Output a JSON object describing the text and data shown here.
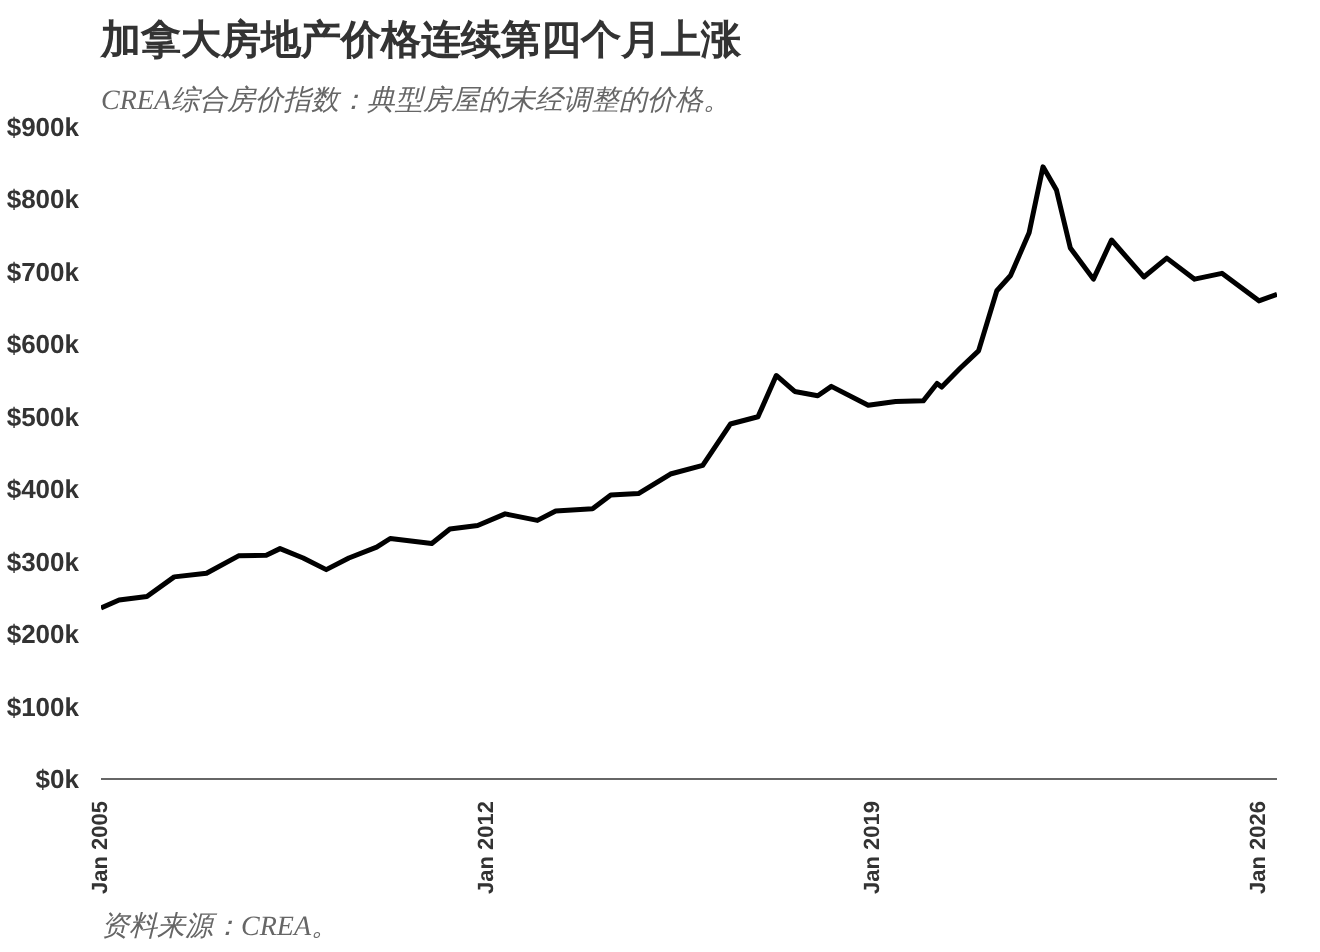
{
  "chart_data": {
    "type": "line",
    "title": "加拿大房地产价格连续第四个月上涨",
    "subtitle": "CREA综合房价指数：典型房屋的未经调整的价格。",
    "annotations": [
      "资料来源：CREA。"
    ],
    "x": [
      "2005-01",
      "2005-05",
      "2005-11",
      "2006-05",
      "2006-12",
      "2007-07",
      "2008-01",
      "2008-04",
      "2008-09",
      "2009-02",
      "2009-07",
      "2010-01",
      "2010-04",
      "2011-01",
      "2011-05",
      "2011-11",
      "2012-05",
      "2012-12",
      "2013-04",
      "2013-12",
      "2014-04",
      "2014-10",
      "2015-05",
      "2015-12",
      "2016-06",
      "2016-12",
      "2017-04",
      "2017-08",
      "2018-01",
      "2018-04",
      "2018-12",
      "2019-06",
      "2019-12",
      "2020-03",
      "2020-04",
      "2020-08",
      "2020-12",
      "2021-04",
      "2021-07",
      "2021-11",
      "2022-02",
      "2022-05",
      "2022-08",
      "2023-01",
      "2023-05",
      "2023-12",
      "2024-05",
      "2024-11",
      "2025-05",
      "2026-01",
      "2026-05"
    ],
    "series": [
      {
        "color": "#000000",
        "values": [
          236,
          247,
          252,
          279,
          284,
          308,
          309,
          318,
          305,
          289,
          305,
          320,
          332,
          325,
          345,
          350,
          366,
          357,
          370,
          373,
          392,
          394,
          421,
          433,
          490,
          500,
          557,
          535,
          529,
          542,
          516,
          521,
          522,
          546,
          541,
          567,
          591,
          674,
          695,
          754,
          845,
          813,
          733,
          690,
          744,
          693,
          719,
          690,
          698,
          660,
          669
        ]
      }
    ],
    "xlim": [
      "2005-01",
      "2026-05"
    ],
    "xticks": [
      {
        "value": "2005-01",
        "label": "Jan 2005"
      },
      {
        "value": "2012-01",
        "label": "Jan 2012"
      },
      {
        "value": "2019-01",
        "label": "Jan 2019"
      },
      {
        "value": "2026-01",
        "label": "Jan 2026"
      }
    ],
    "ylim": [
      0,
      900
    ],
    "yticks": [
      {
        "value": 0,
        "label": "$0k"
      },
      {
        "value": 100,
        "label": "$100k"
      },
      {
        "value": 200,
        "label": "$200k"
      },
      {
        "value": 300,
        "label": "$300k"
      },
      {
        "value": 400,
        "label": "$400k"
      },
      {
        "value": 500,
        "label": "$500k"
      },
      {
        "value": 600,
        "label": "$600k"
      },
      {
        "value": 700,
        "label": "$700k"
      },
      {
        "value": 800,
        "label": "$800k"
      },
      {
        "value": 900,
        "label": "$900k"
      }
    ],
    "grid": false,
    "marker": "none",
    "line_style": "solid"
  }
}
